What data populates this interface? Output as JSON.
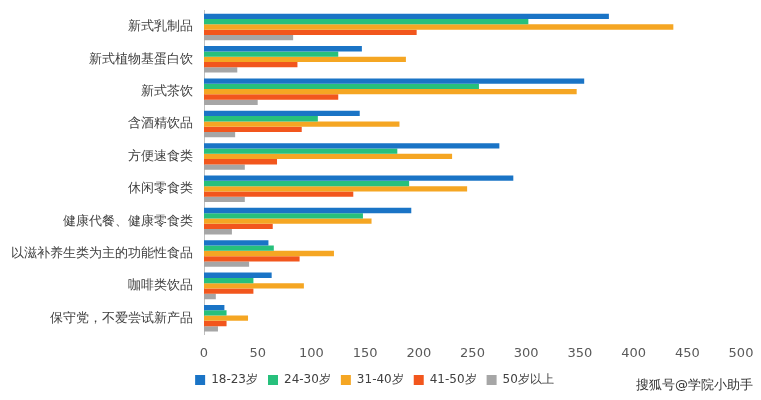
{
  "chart_data": {
    "type": "bar",
    "orientation": "horizontal",
    "categories": [
      "新式乳制品",
      "新式植物基蛋白饮",
      "新式茶饮",
      "含酒精饮品",
      "方便速食类",
      "休闲零食类",
      "健康代餐、健康零食类",
      "以滋补养生类为主的功能性食品",
      "咖啡类饮品",
      "保守党，不爱尝试新产品"
    ],
    "series": [
      {
        "name": "18-23岁",
        "color": "#1a74c6",
        "values": [
          377,
          147,
          354,
          145,
          275,
          288,
          193,
          60,
          63,
          19
        ]
      },
      {
        "name": "24-30岁",
        "color": "#27c07c",
        "values": [
          302,
          125,
          256,
          106,
          180,
          191,
          148,
          65,
          46,
          21
        ]
      },
      {
        "name": "31-40岁",
        "color": "#f5a623",
        "values": [
          437,
          188,
          347,
          182,
          231,
          245,
          156,
          121,
          93,
          41
        ]
      },
      {
        "name": "41-50岁",
        "color": "#f2561d",
        "values": [
          198,
          87,
          125,
          91,
          68,
          139,
          64,
          89,
          46,
          21
        ]
      },
      {
        "name": "50岁以上",
        "color": "#a6a6a6",
        "values": [
          83,
          31,
          50,
          29,
          38,
          38,
          26,
          42,
          11,
          13
        ]
      }
    ],
    "xlim": [
      0,
      500
    ],
    "xticks": [
      0,
      50,
      100,
      150,
      200,
      250,
      300,
      350,
      400,
      450,
      500
    ],
    "grid": false,
    "legend": "bottom",
    "annotations": [
      "搜狐号@学院小助手"
    ]
  }
}
